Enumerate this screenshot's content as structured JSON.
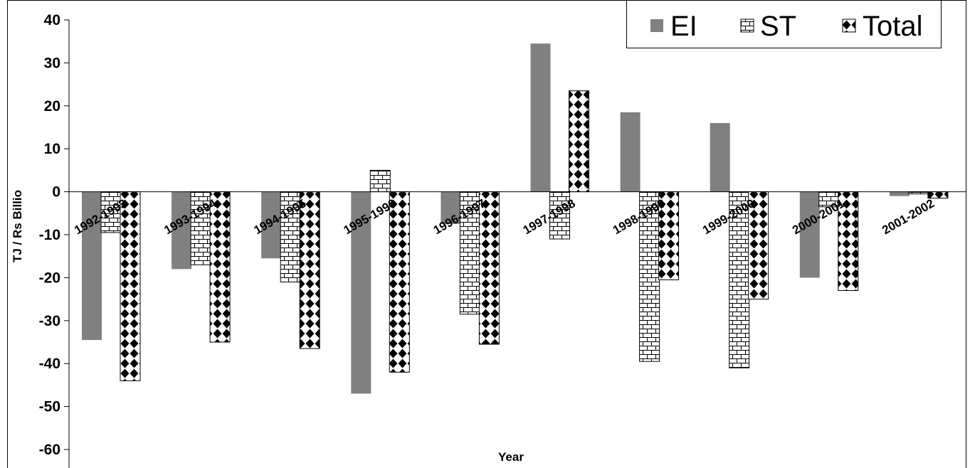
{
  "chart_data": {
    "type": "bar",
    "title": "",
    "xlabel": "Year",
    "ylabel": "TJ / Rs Billio",
    "ylim": [
      -60,
      40
    ],
    "ytick_step": 10,
    "grid": false,
    "legend_position": "top-right",
    "categories": [
      "1992-1993",
      "1993-1994",
      "1994-1995",
      "1995-1996",
      "1996-1997",
      "1997-1998",
      "1998-1999",
      "1999-2000",
      "2000-2001",
      "2001-2002"
    ],
    "series": [
      {
        "name": "EI",
        "pattern": "solid",
        "color": "#808080",
        "values": [
          -34.5,
          -18,
          -15.5,
          -47,
          -7.5,
          34.5,
          18.5,
          16,
          -20,
          -1
        ]
      },
      {
        "name": "ST",
        "pattern": "brick",
        "color": "#ffffff",
        "values": [
          -9.5,
          -17,
          -21,
          5,
          -28.5,
          -11,
          -39.5,
          -41,
          -3.5,
          -0.5
        ]
      },
      {
        "name": "Total",
        "pattern": "diamond",
        "color": "#000000",
        "values": [
          -44,
          -35,
          -36.5,
          -42,
          -35.5,
          23.5,
          -20.5,
          -25,
          -23,
          -1.5
        ]
      }
    ]
  }
}
